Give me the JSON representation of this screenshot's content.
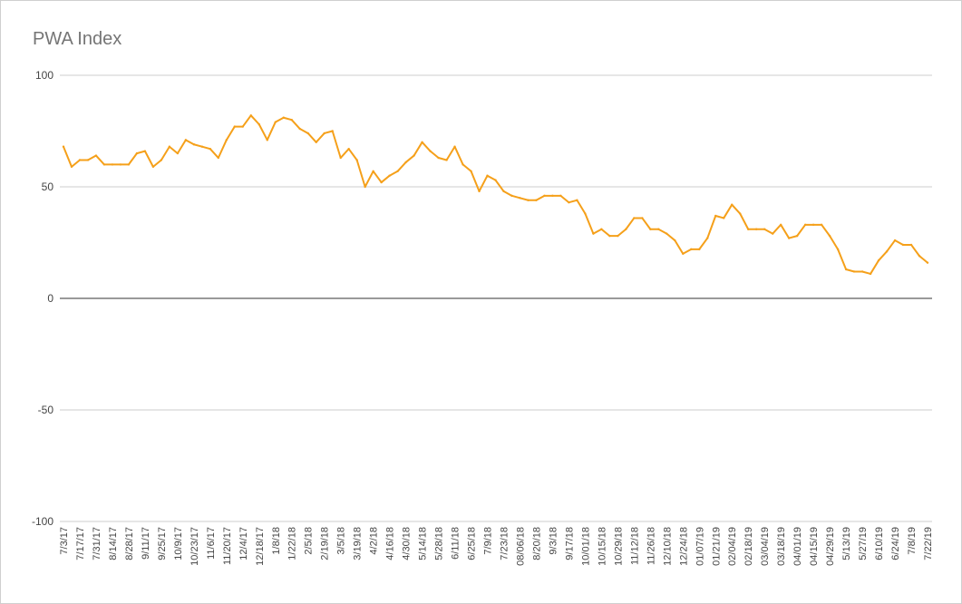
{
  "chart_data": {
    "type": "line",
    "title": "PWA Index",
    "xlabel": "",
    "ylabel": "",
    "ylim": [
      -100,
      100
    ],
    "yticks": [
      100,
      50,
      0,
      -50,
      -100
    ],
    "grid": true,
    "legend": "none",
    "series_color": "#f5a01a",
    "x_tick_labels": [
      "7/3/17",
      "7/17/17",
      "7/31/17",
      "8/14/17",
      "8/28/17",
      "9/11/17",
      "9/25/17",
      "10/9/17",
      "10/23/17",
      "11/6/17",
      "11/20/17",
      "12/4/17",
      "12/18/17",
      "1/8/18",
      "1/22/18",
      "2/5/18",
      "2/19/18",
      "3/5/18",
      "3/19/18",
      "4/2/18",
      "4/16/18",
      "4/30/18",
      "5/14/18",
      "5/28/18",
      "6/11/18",
      "6/25/18",
      "7/9/18",
      "7/23/18",
      "08/06/18",
      "8/20/18",
      "9/3/18",
      "9/17/18",
      "10/01/18",
      "10/15/18",
      "10/29/18",
      "11/12/18",
      "11/26/18",
      "12/10/18",
      "12/24/18",
      "01/07/19",
      "01/21/19",
      "02/04/19",
      "02/18/19",
      "03/04/19",
      "03/18/19",
      "04/01/19",
      "04/15/19",
      "04/29/19",
      "5/13/19",
      "5/27/19",
      "6/10/19",
      "6/24/19",
      "7/8/19",
      "7/22/19"
    ],
    "series": [
      {
        "values": [
          68,
          59,
          62,
          62,
          64,
          60,
          60,
          60,
          60,
          65,
          66,
          59,
          62,
          68,
          65,
          71,
          69,
          68,
          67,
          63,
          71,
          77,
          77,
          82,
          78,
          71,
          79,
          81,
          80,
          76,
          74,
          70,
          74,
          75,
          63,
          67,
          62,
          50,
          57,
          52,
          55,
          57,
          61,
          64,
          70,
          66,
          63,
          62,
          68,
          60,
          57,
          48,
          55,
          53,
          48,
          46,
          45,
          44,
          44,
          46,
          46,
          46,
          43,
          44,
          38,
          29,
          31,
          28,
          28,
          31,
          36,
          36,
          31,
          31,
          29,
          26,
          20,
          22,
          22,
          27,
          37,
          36,
          42,
          38,
          31,
          31,
          31,
          29,
          33,
          27,
          28,
          33,
          33,
          33,
          28,
          22,
          13,
          12,
          12,
          11,
          17,
          21,
          26,
          24,
          24,
          19,
          16
        ]
      }
    ]
  }
}
